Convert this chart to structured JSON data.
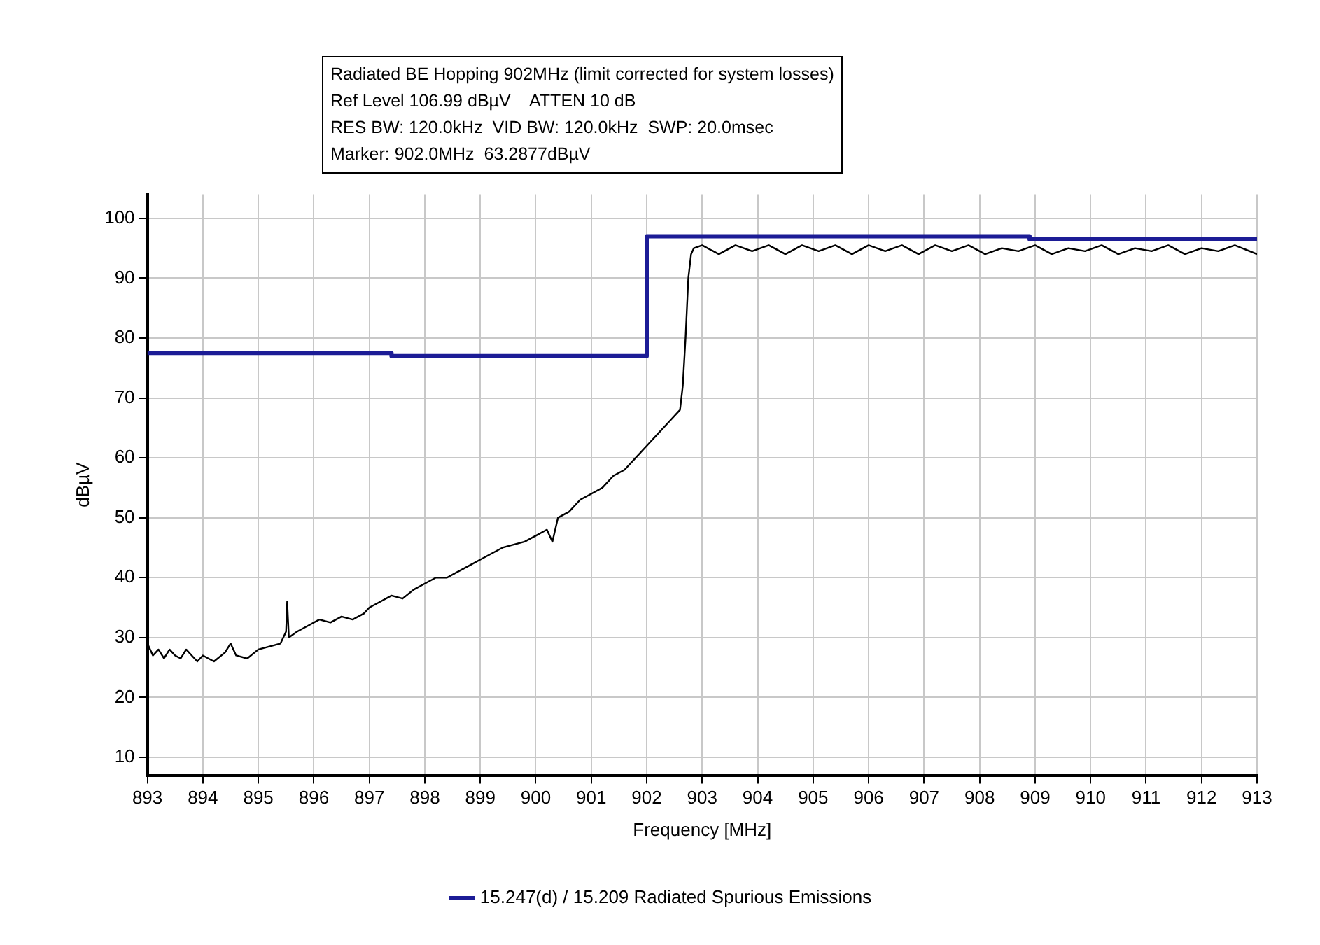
{
  "chart_data": {
    "type": "line",
    "title": "Radiated BE Hopping 902MHz (limit corrected for system losses)",
    "annotations": [
      "Ref Level 106.99 dBµV    ATTEN 10 dB",
      "RES BW: 120.0kHz  VID BW: 120.0kHz  SWP: 20.0msec",
      "Marker: 902.0MHz  63.2877dBµV"
    ],
    "xlabel": "Frequency [MHz]",
    "ylabel": "dBµV",
    "xlim": [
      893,
      913
    ],
    "xticks": [
      893,
      894,
      895,
      896,
      897,
      898,
      899,
      900,
      901,
      902,
      903,
      904,
      905,
      906,
      907,
      908,
      909,
      910,
      911,
      912,
      913
    ],
    "ylim": [
      7,
      104
    ],
    "yticks": [
      10,
      20,
      30,
      40,
      50,
      60,
      70,
      80,
      90,
      100
    ],
    "grid": true,
    "legend": "bottom",
    "marker": "none",
    "line_style": "solid",
    "series": [
      {
        "name": "15.247(d) / 15.209 Radiated Spurious Emissions",
        "type": "step",
        "color": "#1c1c96",
        "x": [
          893,
          897.4,
          902,
          908.9,
          913
        ],
        "values": [
          77.5,
          77,
          97,
          96.5,
          96.5
        ]
      },
      {
        "type": "line",
        "color": "#000000",
        "x": [
          893,
          893.1,
          893.2,
          893.3,
          893.4,
          893.5,
          893.6,
          893.7,
          893.8,
          893.9,
          894,
          894.2,
          894.4,
          894.5,
          894.6,
          894.8,
          895,
          895.2,
          895.4,
          895.5,
          895.52,
          895.55,
          895.7,
          895.9,
          896.1,
          896.3,
          896.5,
          896.7,
          896.9,
          897,
          897.2,
          897.4,
          897.6,
          897.8,
          898,
          898.2,
          898.4,
          898.6,
          898.8,
          899,
          899.2,
          899.4,
          899.6,
          899.8,
          900,
          900.2,
          900.3,
          900.4,
          900.6,
          900.8,
          901,
          901.2,
          901.4,
          901.6,
          901.8,
          902,
          902.2,
          902.4,
          902.6,
          902.65,
          902.7,
          902.75,
          902.8,
          902.85,
          903,
          903.3,
          903.6,
          903.9,
          904.2,
          904.5,
          904.8,
          905.1,
          905.4,
          905.7,
          906,
          906.3,
          906.6,
          906.9,
          907.2,
          907.5,
          907.8,
          908.1,
          908.4,
          908.7,
          909,
          909.3,
          909.6,
          909.9,
          910.2,
          910.5,
          910.8,
          911.1,
          911.4,
          911.7,
          912,
          912.3,
          912.6,
          913
        ],
        "values": [
          29,
          27,
          28,
          26.5,
          28,
          27,
          26.5,
          28,
          27,
          26,
          27,
          26,
          27.5,
          29,
          27,
          26.5,
          28,
          28.5,
          29,
          31,
          36,
          30,
          31,
          32,
          33,
          32.5,
          33.5,
          33,
          34,
          35,
          36,
          37,
          36.5,
          38,
          39,
          40,
          40,
          41,
          42,
          43,
          44,
          45,
          45.5,
          46,
          47,
          48,
          46,
          50,
          51,
          53,
          54,
          55,
          57,
          58,
          60,
          62,
          64,
          66,
          68,
          72,
          80,
          90,
          94,
          95,
          95.5,
          94,
          95.5,
          94.5,
          95.5,
          94,
          95.5,
          94.5,
          95.5,
          94,
          95.5,
          94.5,
          95.5,
          94,
          95.5,
          94.5,
          95.5,
          94,
          95,
          94.5,
          95.5,
          94,
          95,
          94.5,
          95.5,
          94,
          95,
          94.5,
          95.5,
          94,
          95,
          94.5,
          95.5,
          94
        ]
      }
    ]
  }
}
